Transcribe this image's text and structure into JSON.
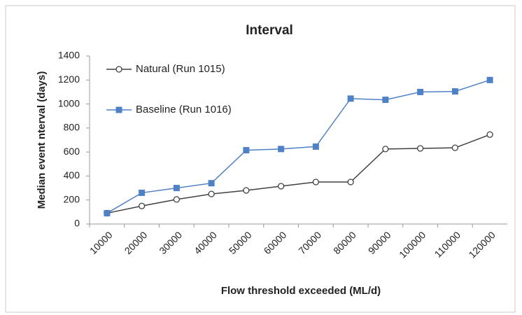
{
  "chart_data": {
    "type": "line",
    "title": "Interval",
    "xlabel": "Flow threshold exceeded (ML/d)",
    "ylabel": "Median event nterval (days)",
    "categories": [
      "10000",
      "20000",
      "30000",
      "40000",
      "50000",
      "60000",
      "70000",
      "80000",
      "90000",
      "100000",
      "110000",
      "120000"
    ],
    "series": [
      {
        "name": "Natural (Run 1015)",
        "color": "#404040",
        "marker": "circle",
        "values": [
          90,
          150,
          205,
          250,
          280,
          315,
          350,
          350,
          625,
          630,
          635,
          745
        ]
      },
      {
        "name": "Baseline (Run 1016)",
        "color": "#4f81c7",
        "marker": "square",
        "values": [
          90,
          260,
          300,
          340,
          615,
          625,
          645,
          1045,
          1035,
          1100,
          1105,
          1200
        ]
      }
    ],
    "ylim": [
      0,
      1400
    ],
    "yticks": [
      0,
      200,
      400,
      600,
      800,
      1000,
      1200,
      1400
    ],
    "grid": false,
    "legend": "top-left"
  }
}
